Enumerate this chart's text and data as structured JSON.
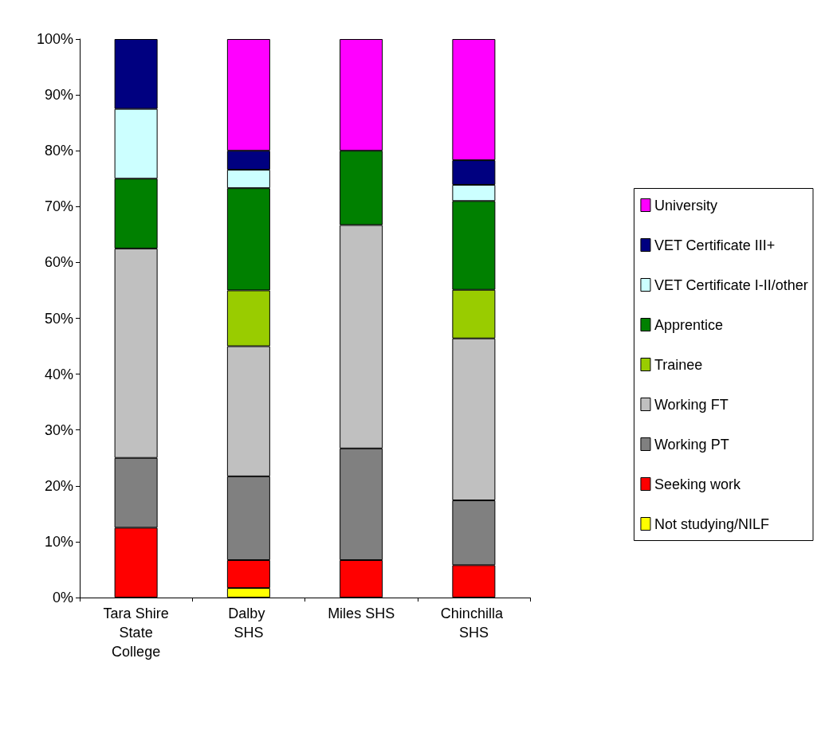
{
  "chart_data": {
    "type": "bar",
    "stacked": true,
    "categories": [
      "Tara Shire State College",
      "Dalby SHS",
      "Miles SHS",
      "Chinchilla SHS"
    ],
    "series": [
      {
        "name": "Not studying/NILF",
        "color": "#ffff00",
        "values": [
          0,
          1.7,
          0,
          0
        ]
      },
      {
        "name": "Seeking work",
        "color": "#ff0000",
        "values": [
          12.5,
          5,
          6.7,
          5.8
        ]
      },
      {
        "name": "Working PT",
        "color": "#808080",
        "values": [
          12.5,
          15,
          20,
          11.6
        ]
      },
      {
        "name": "Working FT",
        "color": "#c0c0c0",
        "values": [
          37.5,
          23.3,
          40,
          29
        ]
      },
      {
        "name": "Trainee",
        "color": "#99cc00",
        "values": [
          0,
          10,
          0,
          8.7
        ]
      },
      {
        "name": "Apprentice",
        "color": "#008000",
        "values": [
          12.5,
          18.3,
          13.3,
          15.9
        ]
      },
      {
        "name": "VET Certificate I-II/other",
        "color": "#ccffff",
        "values": [
          12.5,
          3.3,
          0,
          2.9
        ]
      },
      {
        "name": "VET Certificate III+",
        "color": "#000080",
        "values": [
          12.5,
          3.4,
          0,
          4.4
        ]
      },
      {
        "name": "University",
        "color": "#ff00ff",
        "values": [
          0,
          20,
          20,
          21.7
        ]
      }
    ],
    "ylim": [
      0,
      100
    ],
    "yticks": [
      {
        "value": 0,
        "label": "0%"
      },
      {
        "value": 10,
        "label": "10%"
      },
      {
        "value": 20,
        "label": "20%"
      },
      {
        "value": 30,
        "label": "30%"
      },
      {
        "value": 40,
        "label": "40%"
      },
      {
        "value": 50,
        "label": "50%"
      },
      {
        "value": 60,
        "label": "60%"
      },
      {
        "value": 70,
        "label": "70%"
      },
      {
        "value": 80,
        "label": "80%"
      },
      {
        "value": 90,
        "label": "90%"
      },
      {
        "value": 100,
        "label": "100%"
      }
    ],
    "grid": false,
    "legend": "right"
  }
}
